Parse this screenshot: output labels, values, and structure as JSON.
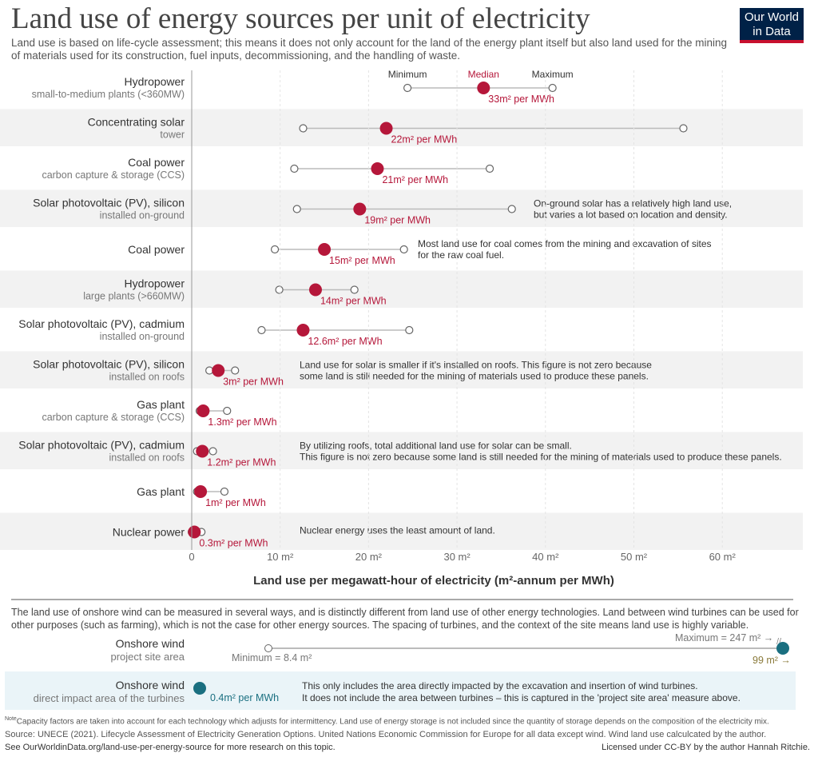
{
  "title": "Land use of energy sources per unit of electricity",
  "subtitle": "Land use is based on life-cycle assessment; this means it does not only account for the land of the energy plant itself but also land used for the mining of materials used for its construction, fuel inputs, decommissioning, and the handling of waste.",
  "logo": {
    "line1": "Our World",
    "line2": "in Data"
  },
  "colors": {
    "median": "#b5173a",
    "wind": "#1a6f80",
    "range": "#bbbbbb",
    "shade": "#f2f2f2",
    "wind_shade": "#eaf4f8"
  },
  "chart_data": {
    "type": "dumbbell",
    "xlabel": "Land use per megawatt-hour of electricity (m²-annum per MWh)",
    "xlim": [
      0,
      69
    ],
    "xticks": [
      0,
      10,
      20,
      30,
      40,
      50,
      60
    ],
    "xtick_labels": [
      "0",
      "10 m²",
      "20 m²",
      "30 m²",
      "40 m²",
      "50 m²",
      "60 m²"
    ],
    "legend": {
      "min": "Minimum",
      "median": "Median",
      "max": "Maximum"
    },
    "rows": [
      {
        "name": "Hydropower",
        "sub": "small-to-medium plants (<360MW)",
        "min": 24.4,
        "median": 33,
        "max": 40.8,
        "label": "33m² per MWh",
        "note": ""
      },
      {
        "name": "Concentrating solar",
        "sub": "tower",
        "min": 12.6,
        "median": 22,
        "max": 55.6,
        "label": "22m² per MWh",
        "note": ""
      },
      {
        "name": "Coal power",
        "sub": "carbon capture & storage (CCS)",
        "min": 11.6,
        "median": 21,
        "max": 33.7,
        "label": "21m² per MWh",
        "note": ""
      },
      {
        "name": "Solar photovoltaic (PV), silicon",
        "sub": "installed on-ground",
        "min": 11.9,
        "median": 19,
        "max": 36.2,
        "label": "19m² per MWh",
        "note": "On-ground solar has a relatively high land use,\nbut varies a lot based on location and density."
      },
      {
        "name": "Coal power",
        "sub": "",
        "min": 9.4,
        "median": 15,
        "max": 24,
        "label": "15m² per MWh",
        "note": "Most land use for coal comes from the mining and excavation of sites\nfor the raw coal fuel."
      },
      {
        "name": "Hydropower",
        "sub": "large plants (>660MW)",
        "min": 9.9,
        "median": 14,
        "max": 18.4,
        "label": "14m² per MWh",
        "note": ""
      },
      {
        "name": "Solar photovoltaic (PV), cadmium",
        "sub": "installed on-ground",
        "min": 7.9,
        "median": 12.6,
        "max": 24.6,
        "label": "12.6m² per MWh",
        "note": ""
      },
      {
        "name": "Solar photovoltaic (PV), silicon",
        "sub": "installed on roofs",
        "min": 2,
        "median": 3,
        "max": 4.9,
        "label": "3m² per MWh",
        "note": "Land use for solar is smaller if it's installed on roofs. This figure is not zero because\nsome land is still needed for the mining of materials used to produce these panels."
      },
      {
        "name": "Gas plant",
        "sub": "carbon capture & storage (CCS)",
        "min": 0.9,
        "median": 1.3,
        "max": 4,
        "label": "1.3m² per MWh",
        "note": ""
      },
      {
        "name": "Solar photovoltaic (PV), cadmium",
        "sub": "installed on roofs",
        "min": 0.6,
        "median": 1.2,
        "max": 2.4,
        "label": "1.2m² per MWh",
        "note": "By utilizing roofs, total additional land use for solar can be small.\nThis figure is not zero because some land is still needed for the mining of materials used to produce these panels."
      },
      {
        "name": "Gas plant",
        "sub": "",
        "min": 0.6,
        "median": 1,
        "max": 3.7,
        "label": "1m² per MWh",
        "note": ""
      },
      {
        "name": "Nuclear power",
        "sub": "",
        "min": 0,
        "median": 0.3,
        "max": 1.1,
        "label": "0.3m² per MWh",
        "note": "Nuclear energy uses the least amount of land."
      }
    ],
    "wind": {
      "intro": "The land use of onshore wind can be measured in several ways, and is distinctly different from land use of other energy technologies. Land between wind turbines can be used for other purposes (such as farming), which is not the case for other energy sources. The spacing of turbines, and the context of the site means land use is highly variable.",
      "site": {
        "name": "Onshore wind",
        "sub": "project site area",
        "min": 8.4,
        "median": 99,
        "max": 247,
        "min_label": "Minimum = 8.4 m²",
        "max_label": "Maximum = 247 m²",
        "median_label": "99 m²"
      },
      "direct": {
        "name": "Onshore wind",
        "sub": "direct impact area of the turbines",
        "median": 0.4,
        "label": "0.4m² per MWh",
        "note": "This only includes the area directly impacted by the excavation and insertion of wind turbines.\nIt does not include the area between turbines – this is captured in the 'project site area' measure above."
      }
    }
  },
  "footer": {
    "note_prefix": "Note",
    "note": "Capacity factors are taken into account for each technology which adjusts for intermittency. Land use of energy storage is not included since the quantity of storage depends on the composition of the electricity mix.",
    "source": "Source: UNECE (2021). Lifecycle Assessment of Electricity Generation Options. United Nations Economic Commission for Europe for all data except wind. Wind land use calculcated by the author.",
    "see": "See OurWorldinData.org/land-use-per-energy-source for more research on this topic.",
    "license": "Licensed under CC-BY by the author Hannah Ritchie."
  }
}
